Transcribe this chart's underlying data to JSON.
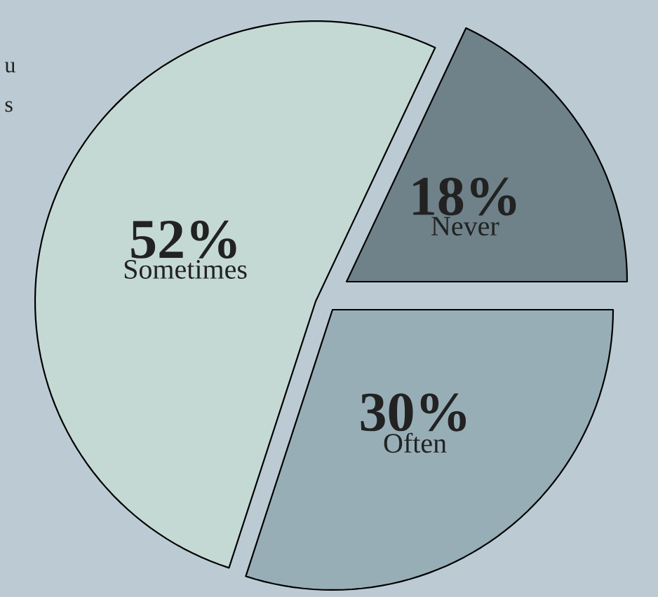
{
  "chart_data": {
    "type": "pie",
    "categories": [
      "Often",
      "Never",
      "Sometimes"
    ],
    "values": [
      30,
      18,
      52
    ],
    "value_labels": [
      "30%",
      "18%",
      "52%"
    ],
    "colors": [
      "#98aeb7",
      "#6f8189",
      "#c5d9d4"
    ],
    "annotations": [
      "u",
      "s"
    ]
  }
}
